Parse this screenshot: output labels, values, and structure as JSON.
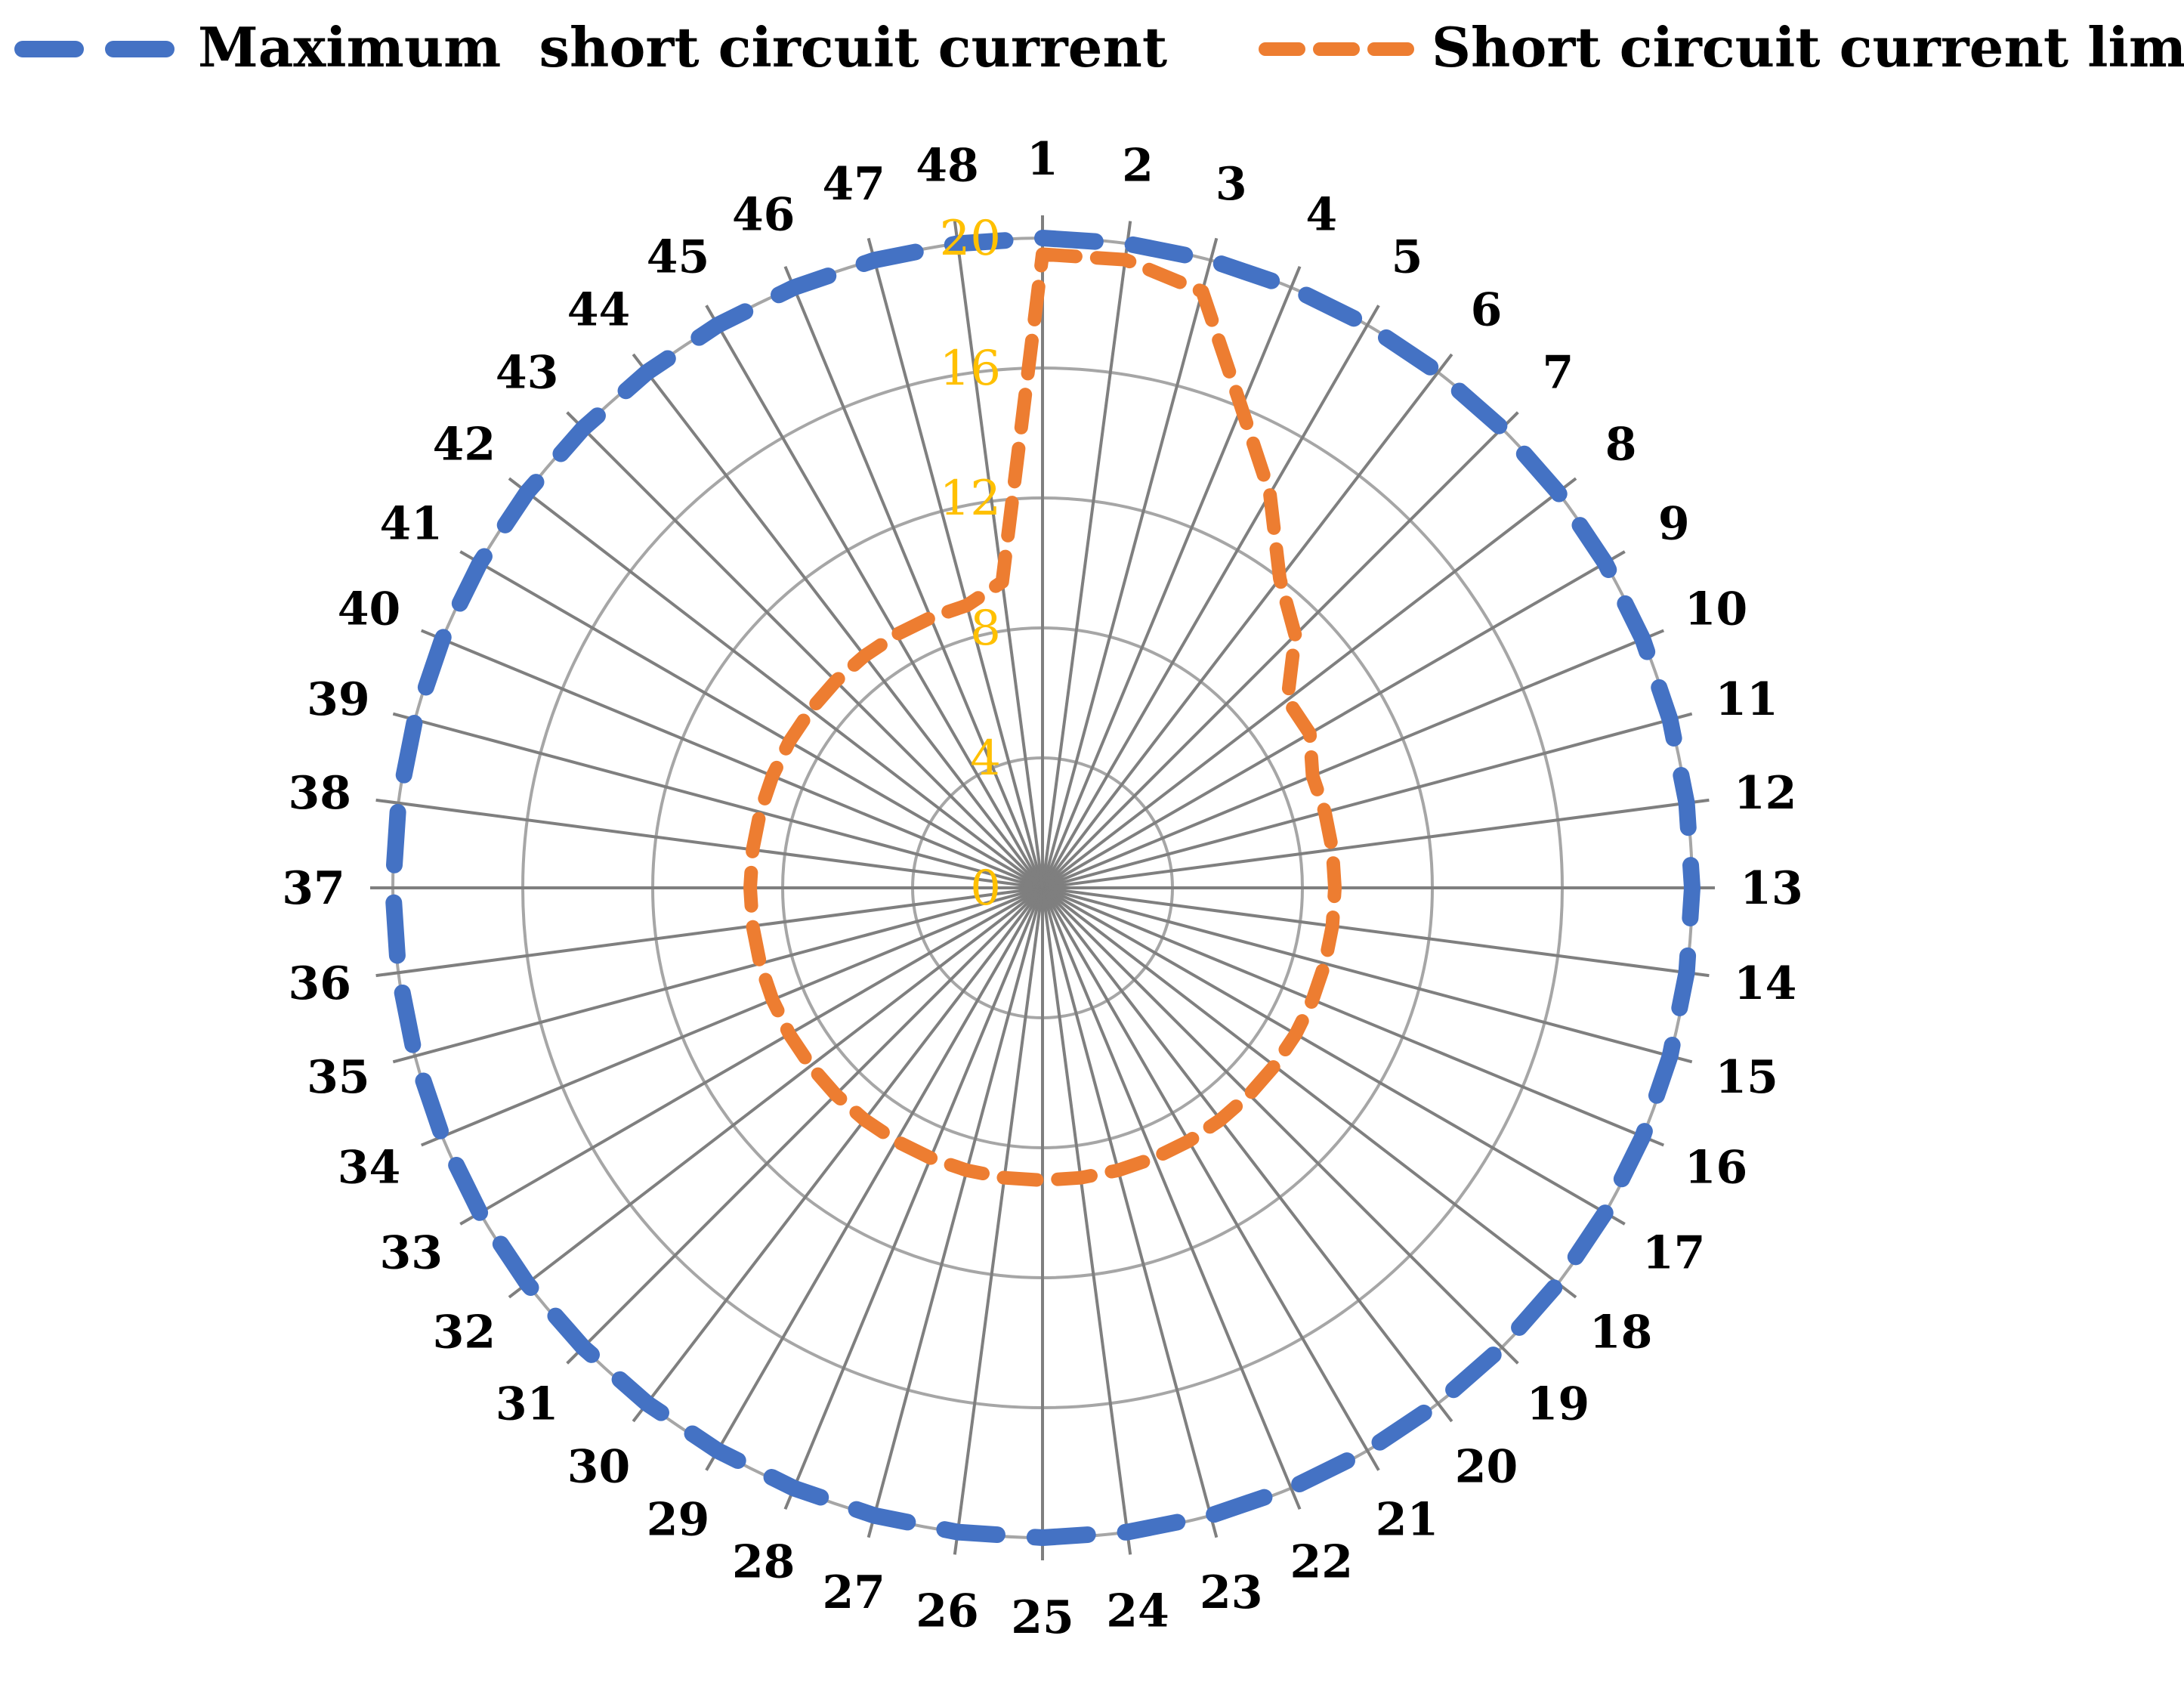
{
  "chart_data": {
    "type": "radar",
    "title": "",
    "categories": [
      "1",
      "2",
      "3",
      "4",
      "5",
      "6",
      "7",
      "8",
      "9",
      "10",
      "11",
      "12",
      "13",
      "14",
      "15",
      "16",
      "17",
      "18",
      "19",
      "20",
      "21",
      "22",
      "23",
      "24",
      "25",
      "26",
      "27",
      "28",
      "29",
      "30",
      "31",
      "32",
      "33",
      "34",
      "35",
      "36",
      "37",
      "38",
      "39",
      "40",
      "41",
      "42",
      "43",
      "44",
      "45",
      "46",
      "47",
      "48"
    ],
    "rlim": [
      0,
      20
    ],
    "ticks": [
      0,
      4,
      8,
      12,
      16,
      20
    ],
    "tick_color": "#ffc000",
    "grid": true,
    "legend_position": "top",
    "series": [
      {
        "name": "Maximum  short circuit current",
        "color": "#4472c4",
        "style": "dashed",
        "values": [
          20,
          20,
          20,
          20,
          20,
          20,
          20,
          20,
          20,
          20,
          20,
          20,
          20,
          20,
          20,
          20,
          20,
          20,
          20,
          20,
          20,
          20,
          20,
          20,
          20,
          20,
          20,
          20,
          20,
          20,
          20,
          20,
          20,
          20,
          20,
          20,
          20,
          20,
          20,
          20,
          20,
          20,
          20,
          20,
          20,
          20,
          20,
          20
        ]
      },
      {
        "name": "Short circuit current limit",
        "color": "#ed7d31",
        "style": "dashed",
        "values": [
          19.5,
          19.5,
          19,
          16,
          14,
          12,
          11,
          9.5,
          9.5,
          9,
          9,
          9,
          9,
          9,
          9,
          9,
          9,
          9,
          9,
          9,
          9,
          9,
          9,
          9,
          9,
          9,
          9,
          9,
          9,
          9,
          9,
          9,
          9,
          9,
          9,
          9,
          9,
          9,
          9,
          9,
          9,
          9,
          9,
          9,
          9,
          9,
          9,
          9.5
        ]
      }
    ]
  }
}
